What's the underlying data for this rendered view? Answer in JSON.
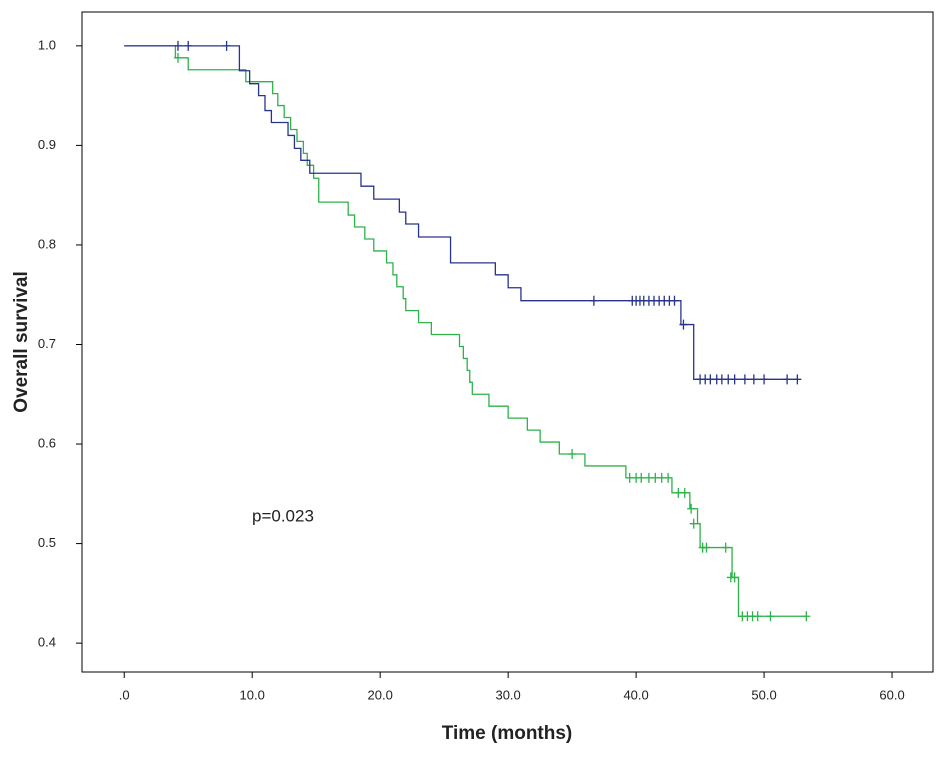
{
  "chart_data": {
    "type": "step",
    "x_label": "Time (months)",
    "y_label": "Overall survival",
    "annotation": "p=0.023",
    "xlim": [
      -3.3,
      63.2
    ],
    "ylim": [
      0.371,
      1.034
    ],
    "xticks": [
      {
        "value": 0,
        "label": ".0"
      },
      {
        "value": 10,
        "label": "10.0"
      },
      {
        "value": 20,
        "label": "20.0"
      },
      {
        "value": 30,
        "label": "30.0"
      },
      {
        "value": 40,
        "label": "40.0"
      },
      {
        "value": 50,
        "label": "50.0"
      },
      {
        "value": 60,
        "label": "60.0"
      }
    ],
    "yticks": [
      {
        "value": 0.4,
        "label": "0.4"
      },
      {
        "value": 0.5,
        "label": "0.5"
      },
      {
        "value": 0.6,
        "label": "0.6"
      },
      {
        "value": 0.7,
        "label": "0.7"
      },
      {
        "value": 0.8,
        "label": "0.8"
      },
      {
        "value": 0.9,
        "label": "0.9"
      },
      {
        "value": 1.0,
        "label": "1.0"
      }
    ],
    "series": [
      {
        "color": "#2db34a",
        "x": [
          0,
          4,
          5,
          9.5,
          11.6,
          12,
          12.5,
          13,
          13.5,
          14,
          14.3,
          14.8,
          15.2,
          17.5,
          18,
          18.8,
          19.5,
          20.5,
          21,
          21.3,
          21.8,
          22,
          23,
          24,
          26.2,
          26.5,
          26.8,
          27,
          27.2,
          28.5,
          30,
          31.5,
          32.5,
          34,
          36,
          39.2,
          42.8,
          44.2,
          44.8,
          45,
          47.5,
          48,
          53.3
        ],
        "values": [
          1.0,
          0.988,
          0.976,
          0.964,
          0.952,
          0.94,
          0.928,
          0.916,
          0.904,
          0.892,
          0.88,
          0.867,
          0.843,
          0.83,
          0.818,
          0.806,
          0.794,
          0.782,
          0.77,
          0.758,
          0.746,
          0.734,
          0.722,
          0.71,
          0.698,
          0.686,
          0.674,
          0.662,
          0.65,
          0.638,
          0.626,
          0.614,
          0.602,
          0.59,
          0.578,
          0.566,
          0.551,
          0.535,
          0.52,
          0.496,
          0.466,
          0.427,
          0.427
        ],
        "censor_x": [
          4.2,
          35,
          39.5,
          40,
          40.4,
          41,
          41.5,
          42,
          42.5,
          43.3,
          43.8,
          44.3,
          44.5,
          45.2,
          45.5,
          47,
          47.4,
          47.7,
          48.3,
          48.7,
          49.1,
          49.5,
          50.5,
          53.3
        ],
        "censor_values": [
          0.988,
          0.59,
          0.566,
          0.566,
          0.566,
          0.566,
          0.566,
          0.566,
          0.566,
          0.551,
          0.551,
          0.535,
          0.52,
          0.496,
          0.496,
          0.496,
          0.466,
          0.466,
          0.427,
          0.427,
          0.427,
          0.427,
          0.427,
          0.427
        ]
      },
      {
        "color": "#27348b",
        "x": [
          0,
          9,
          9.8,
          10.5,
          11,
          11.5,
          12.8,
          13.3,
          13.8,
          14.5,
          18.5,
          19.5,
          21.5,
          22,
          23,
          25.5,
          29,
          30,
          31,
          43.5,
          44.5,
          52.6
        ],
        "values": [
          1.0,
          0.975,
          0.962,
          0.95,
          0.935,
          0.923,
          0.91,
          0.897,
          0.885,
          0.872,
          0.859,
          0.846,
          0.833,
          0.821,
          0.808,
          0.782,
          0.77,
          0.757,
          0.744,
          0.72,
          0.665,
          0.665
        ],
        "censor_x": [
          4.2,
          5,
          8,
          36.7,
          39.7,
          40,
          40.3,
          40.6,
          41,
          41.4,
          41.8,
          42.2,
          42.6,
          43,
          43.7,
          45,
          45.4,
          45.8,
          46.3,
          46.7,
          47.2,
          47.7,
          48.5,
          49.2,
          50,
          51.8,
          52.6
        ],
        "censor_values": [
          1.0,
          1.0,
          1.0,
          0.744,
          0.744,
          0.744,
          0.744,
          0.744,
          0.744,
          0.744,
          0.744,
          0.744,
          0.744,
          0.744,
          0.72,
          0.665,
          0.665,
          0.665,
          0.665,
          0.665,
          0.665,
          0.665,
          0.665,
          0.665,
          0.665,
          0.665,
          0.665
        ]
      }
    ]
  }
}
